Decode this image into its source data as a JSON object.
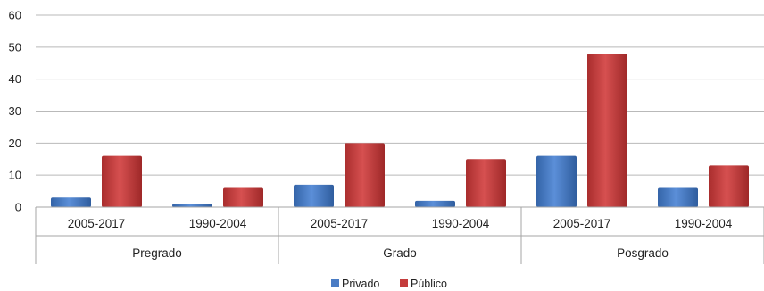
{
  "chart_data": {
    "type": "bar",
    "title": "",
    "xlabel": "",
    "ylabel": "",
    "ylim": [
      0,
      60
    ],
    "yticks": [
      0,
      10,
      20,
      30,
      40,
      50,
      60
    ],
    "grid": true,
    "legend_position": "bottom-center",
    "groups": [
      {
        "label": "Pregrado",
        "categories": [
          "2005-2017",
          "1990-2004"
        ]
      },
      {
        "label": "Grado",
        "categories": [
          "2005-2017",
          "1990-2004"
        ]
      },
      {
        "label": "Posgrado",
        "categories": [
          "2005-2017",
          "1990-2004"
        ]
      }
    ],
    "categories": [
      "2005-2017",
      "1990-2004",
      "2005-2017",
      "1990-2004",
      "2005-2017",
      "1990-2004"
    ],
    "series": [
      {
        "name": "Privado",
        "color": "#4a7cc4",
        "values": [
          3,
          1,
          7,
          2,
          16,
          6
        ]
      },
      {
        "name": "Público",
        "color": "#c43c3c",
        "values": [
          16,
          6,
          20,
          15,
          48,
          13
        ]
      }
    ]
  }
}
